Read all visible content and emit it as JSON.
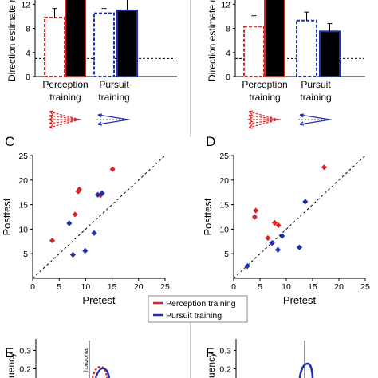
{
  "colors": {
    "perception": "#d62728",
    "pursuit": "#1f2fb0",
    "black": "#000000"
  },
  "panel_labels": {
    "C": "C",
    "D": "D",
    "E": "E",
    "F": "F"
  },
  "legend": {
    "perception": "Perception training",
    "pursuit": "Pursuit training"
  },
  "ylabel_fragment": "Direction estimate r",
  "bar_group_labels": {
    "perception": [
      "Perception",
      "training"
    ],
    "pursuit": [
      "Pursuit",
      "training"
    ]
  },
  "e_axis_fragment": "horizontal",
  "freq_fragment": "uency",
  "chart_data": [
    {
      "id": "A",
      "type": "bar",
      "categories": [
        "Perception training",
        "Pursuit training"
      ],
      "series": [
        {
          "values": [
            9.8,
            13.5
          ],
          "errors": [
            1.5,
            0
          ]
        },
        {
          "values": [
            10.5,
            11.0
          ],
          "errors": [
            0.8,
            1.8
          ]
        }
      ],
      "bar_styles": [
        "red-dashed-open",
        "black-filled-red-edge",
        "blue-dashed-open",
        "black-filled-blue-edge"
      ],
      "ylabel": "Direction estimate r",
      "yticks": [
        0,
        4,
        8,
        12
      ],
      "ylim": [
        0,
        13.5
      ],
      "reference_line": 3.0
    },
    {
      "id": "B",
      "type": "bar",
      "categories": [
        "Perception training",
        "Pursuit training"
      ],
      "series": [
        {
          "values": [
            8.3,
            13.5
          ],
          "errors": [
            1.8,
            0
          ]
        },
        {
          "values": [
            9.3,
            7.5
          ],
          "errors": [
            1.4,
            1.3
          ]
        }
      ],
      "bar_styles": [
        "red-dashed-open",
        "black-filled-red-edge",
        "blue-dashed-open",
        "black-filled-blue-edge"
      ],
      "ylabel": "Direction estimate r",
      "yticks": [
        0,
        4,
        8,
        12
      ],
      "ylim": [
        0,
        13.5
      ],
      "reference_line": 3.0
    },
    {
      "id": "C",
      "type": "scatter",
      "xlabel": "Pretest",
      "ylabel": "Posttest",
      "xlim": [
        0,
        25
      ],
      "ylim": [
        0,
        25
      ],
      "xticks": [
        0,
        5,
        10,
        15,
        20,
        25
      ],
      "yticks": [
        5,
        10,
        15,
        20,
        25
      ],
      "identity_line": true,
      "series": [
        {
          "name": "Perception training",
          "marker": "diamond",
          "x": [
            3.7,
            8.0,
            8.6,
            8.8,
            12.8,
            15.1
          ],
          "y": [
            7.7,
            13.0,
            17.7,
            18.1,
            16.9,
            22.2
          ]
        },
        {
          "name": "Pursuit training",
          "marker": "diamond",
          "x": [
            6.9,
            7.6,
            9.9,
            11.6,
            12.3,
            13.1
          ],
          "y": [
            11.2,
            4.8,
            5.6,
            9.2,
            17.0,
            17.3
          ]
        }
      ]
    },
    {
      "id": "D",
      "type": "scatter",
      "xlabel": "Pretest",
      "ylabel": "",
      "xlim": [
        0,
        25
      ],
      "ylim": [
        0,
        25
      ],
      "xticks": [
        0,
        5,
        10,
        15,
        20,
        25
      ],
      "yticks": [
        5,
        10,
        15,
        20,
        25
      ],
      "identity_line": true,
      "series": [
        {
          "name": "Perception training",
          "marker": "diamond",
          "x": [
            4.0,
            4.2,
            6.5,
            7.8,
            8.5,
            17.2
          ],
          "y": [
            12.5,
            13.8,
            8.2,
            11.3,
            10.8,
            22.6
          ]
        },
        {
          "name": "Pursuit training",
          "marker": "diamond",
          "x": [
            2.6,
            7.3,
            8.4,
            9.2,
            12.5,
            13.6
          ],
          "y": [
            2.5,
            7.2,
            5.8,
            8.6,
            6.3,
            15.6
          ]
        }
      ]
    },
    {
      "id": "E",
      "type": "line",
      "ylabel": "Frequency",
      "yticks": [
        0.2,
        0.3
      ]
    },
    {
      "id": "F",
      "type": "line",
      "ylabel": "Frequency",
      "yticks": [
        0.2,
        0.3
      ]
    }
  ]
}
